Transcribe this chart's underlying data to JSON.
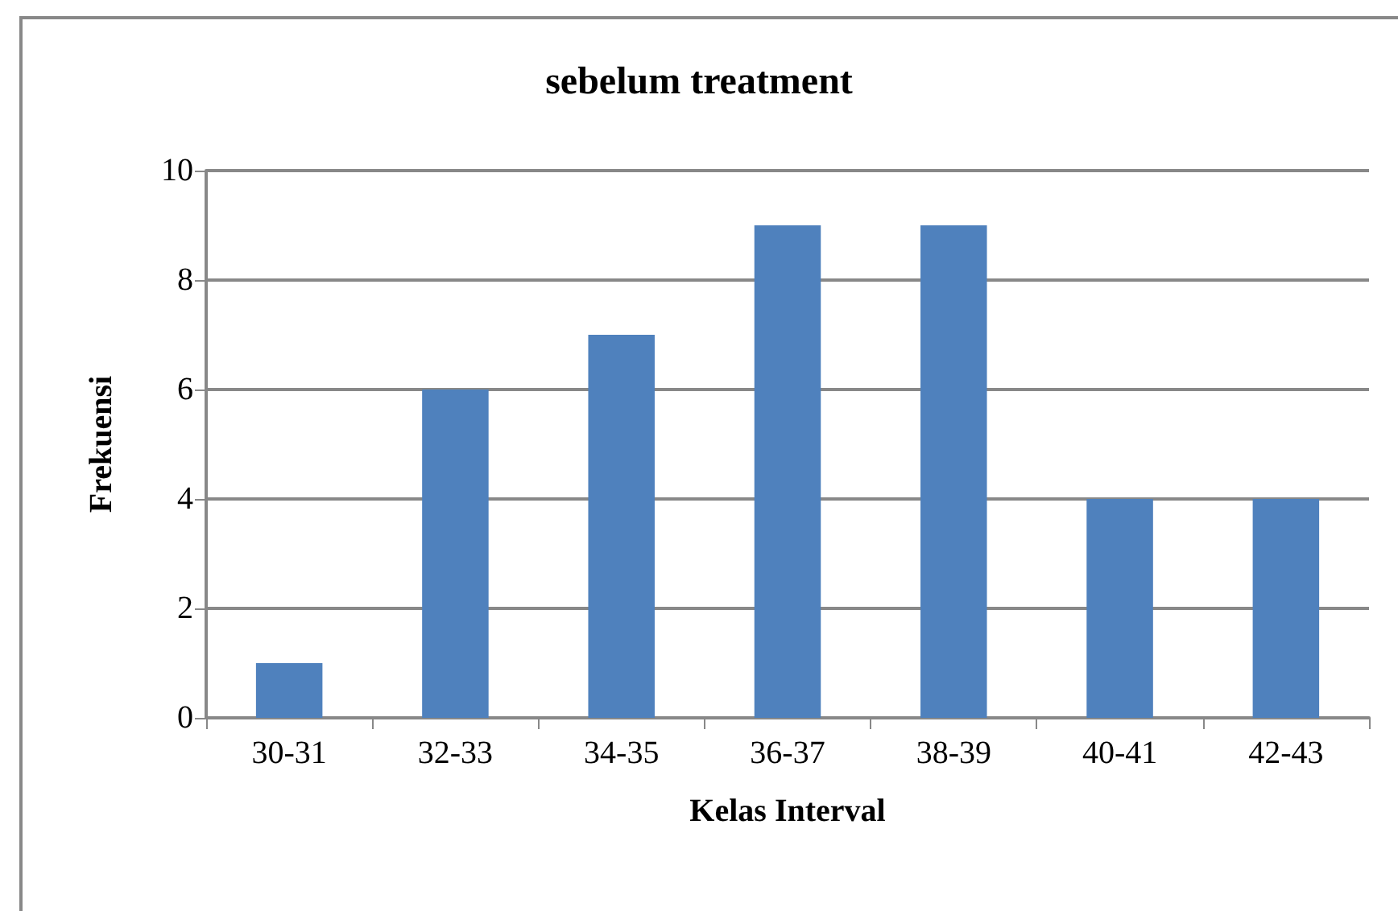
{
  "chart_data": {
    "type": "bar",
    "title": "sebelum treatment",
    "xlabel": "Kelas Interval",
    "ylabel": "Frekuensi",
    "categories": [
      "30-31",
      "32-33",
      "34-35",
      "36-37",
      "38-39",
      "40-41",
      "42-43"
    ],
    "values": [
      1,
      6,
      7,
      9,
      9,
      4,
      4
    ],
    "color": "#4f81bd",
    "ylim": [
      0,
      10
    ],
    "yticks": [
      0,
      2,
      4,
      6,
      8,
      10
    ],
    "grid": "y"
  }
}
